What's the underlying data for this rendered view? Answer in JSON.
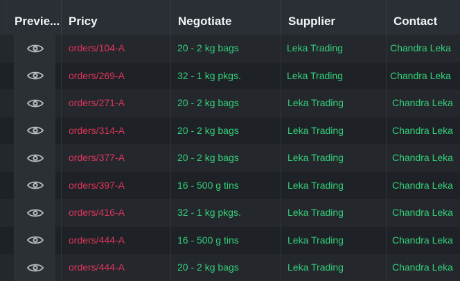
{
  "columns": {
    "preview": "Previe...",
    "pricy": "Pricy",
    "negotiate": "Negotiate",
    "supplier": "Supplier",
    "contact": "Contact"
  },
  "preview_icon": "eye-icon",
  "colors": {
    "order_text": "#e0345a",
    "green_text": "#35d07a",
    "header_bg": "#2a2f35",
    "row_bg": "#22262b"
  },
  "rows": [
    {
      "order": "orders/104-A",
      "negotiate": "20 - 2 kg bags",
      "supplier": "Leka Trading",
      "contact": "Chandra Leka"
    },
    {
      "order": "orders/269-A",
      "negotiate": "32 - 1 kg pkgs.",
      "supplier": "Leka Trading",
      "contact": "Chandra Leka"
    },
    {
      "order": "orders/271-A",
      "negotiate": "20 - 2 kg bags",
      "supplier": "Leka Trading",
      "contact": "Chandra Leka"
    },
    {
      "order": "orders/314-A",
      "negotiate": "20 - 2 kg bags",
      "supplier": "Leka Trading",
      "contact": "Chandra Leka"
    },
    {
      "order": "orders/377-A",
      "negotiate": "20 - 2 kg bags",
      "supplier": "Leka Trading",
      "contact": "Chandra Leka"
    },
    {
      "order": "orders/397-A",
      "negotiate": "16 - 500 g tins",
      "supplier": "Leka Trading",
      "contact": "Chandra Leka"
    },
    {
      "order": "orders/416-A",
      "negotiate": "32 - 1 kg pkgs.",
      "supplier": "Leka Trading",
      "contact": "Chandra Leka"
    },
    {
      "order": "orders/444-A",
      "negotiate": "16 - 500 g tins",
      "supplier": "Leka Trading",
      "contact": "Chandra Leka"
    },
    {
      "order": "orders/444-A",
      "negotiate": "20 - 2 kg bags",
      "supplier": "Leka Trading",
      "contact": "Chandra Leka"
    }
  ]
}
